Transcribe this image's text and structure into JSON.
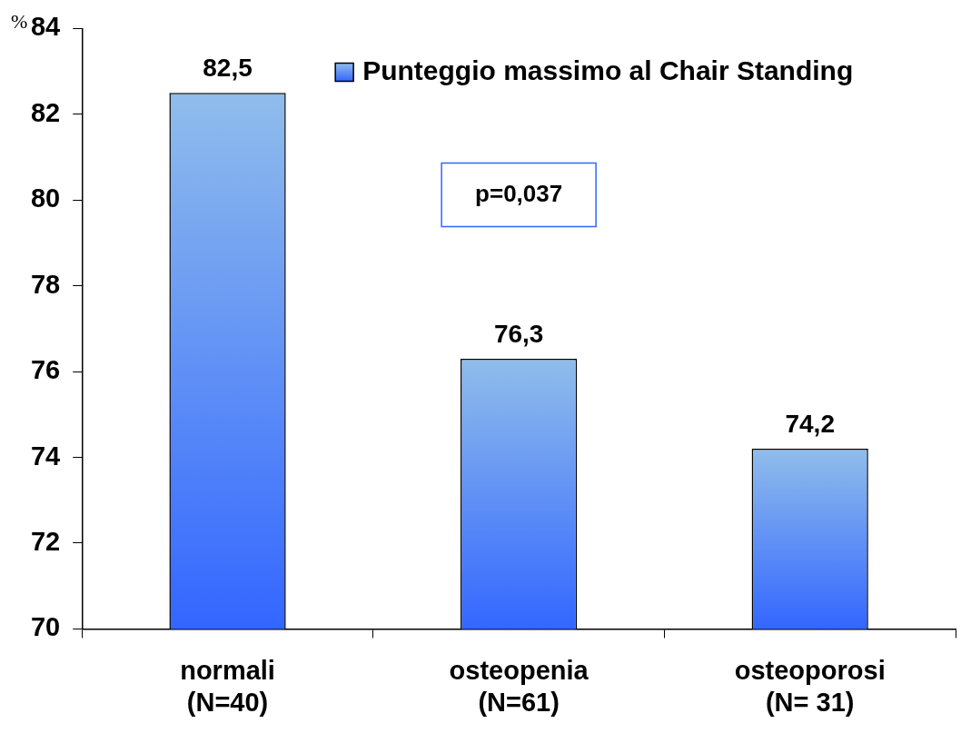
{
  "chart_data": {
    "type": "bar",
    "ylabel": "%",
    "categories": [
      "normali\n(N=40)",
      "osteopenia\n(N=61)",
      "osteoporosi\n(N= 31)"
    ],
    "series": [
      {
        "name": "Punteggio massimo al Chair Standing",
        "color": "#3366ff",
        "values": [
          82.5,
          76.3,
          74.2
        ],
        "value_labels": [
          "82,5",
          "76,3",
          "74,2"
        ]
      }
    ],
    "ylim": [
      70,
      84
    ],
    "yticks": [
      70,
      72,
      74,
      76,
      78,
      80,
      82,
      84
    ],
    "grid": false,
    "legend": "top right",
    "annotations": [
      "p=0,037"
    ]
  }
}
